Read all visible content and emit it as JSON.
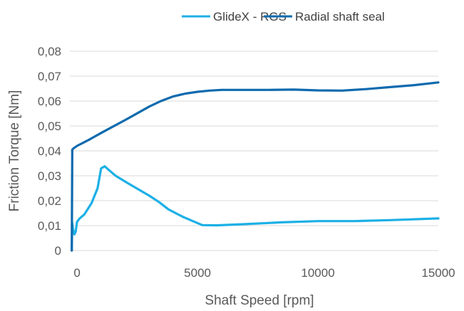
{
  "chart_data": {
    "type": "line",
    "xlabel": "Shaft Speed [rpm]",
    "ylabel": "Friction Torque [Nm]",
    "xlim": [
      -300,
      15000
    ],
    "ylim": [
      0,
      0.08
    ],
    "x_ticks": [
      0,
      5000,
      10000,
      15000
    ],
    "x_tick_labels": [
      "0",
      "5000",
      "10000",
      "15000"
    ],
    "y_ticks": [
      0,
      0.01,
      0.02,
      0.03,
      0.04,
      0.05,
      0.06,
      0.07,
      0.08
    ],
    "y_tick_labels": [
      "0",
      "0,01",
      "0,02",
      "0,03",
      "0,04",
      "0,05",
      "0,06",
      "0,07",
      "0,08"
    ],
    "grid": "horizontal",
    "legend": "top",
    "series": [
      {
        "name": "GlideX - RGS",
        "color": "#1CB0E6",
        "x": [
          -220,
          -200,
          -170,
          -140,
          -110,
          -60,
          0,
          100,
          300,
          600,
          850,
          1000,
          1150,
          1300,
          1600,
          2200,
          3000,
          3400,
          3800,
          4400,
          5200,
          5800,
          7000,
          8500,
          10000,
          11500,
          13000,
          15000
        ],
        "y": [
          0.0,
          0.011,
          0.0085,
          0.0075,
          0.0065,
          0.0075,
          0.0115,
          0.0128,
          0.0145,
          0.019,
          0.025,
          0.033,
          0.0338,
          0.0325,
          0.03,
          0.0265,
          0.022,
          0.0195,
          0.0165,
          0.0135,
          0.0102,
          0.0101,
          0.0106,
          0.0113,
          0.0118,
          0.0118,
          0.0122,
          0.0129
        ]
      },
      {
        "name": "Radial shaft seal",
        "color": "#0E6AAE",
        "x": [
          -220,
          -200,
          -150,
          0,
          500,
          1000,
          1500,
          2000,
          2500,
          3000,
          3500,
          4000,
          4500,
          5000,
          5500,
          6000,
          7000,
          8000,
          9000,
          10000,
          11000,
          12000,
          13000,
          14000,
          15000
        ],
        "y": [
          0.0,
          0.0405,
          0.041,
          0.042,
          0.0445,
          0.0472,
          0.0498,
          0.0524,
          0.0551,
          0.0578,
          0.0601,
          0.0619,
          0.063,
          0.0637,
          0.0642,
          0.0645,
          0.0645,
          0.0645,
          0.0646,
          0.0643,
          0.0642,
          0.0648,
          0.0656,
          0.0664,
          0.0675
        ]
      }
    ]
  }
}
